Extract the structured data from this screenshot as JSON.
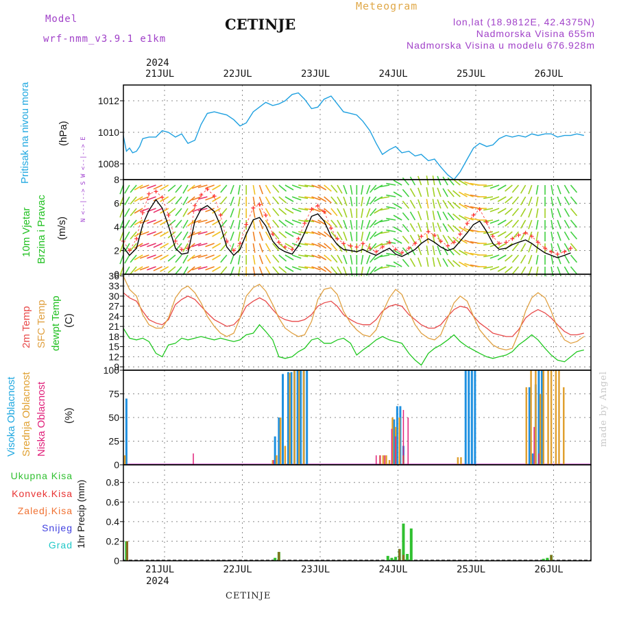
{
  "header": {
    "model_label": "Model",
    "model_name": "wrf-nmm_v3.9.1 e1km",
    "title": "CETINJE",
    "meteogram_label": "Meteogram",
    "lonlat": "lon,lat (18.9812E, 42.4375N)",
    "elevation": "Nadmorska Visina 655m",
    "model_elevation": "Nadmorska Visina u modelu 676.928m"
  },
  "footer": {
    "station": "CETINJE",
    "credit": "made by Angel"
  },
  "time_axis": {
    "year_label": "2024",
    "day_labels": [
      "21JUL",
      "22JUL",
      "23JUL",
      "24JUL",
      "25JUL",
      "26JUL"
    ]
  },
  "colors": {
    "pressure": "#1ea0e0",
    "wind_speed": "#000000",
    "gust": "#ff3030",
    "temp2m": "#e84848",
    "sfc_temp": "#e0a040",
    "dewpoint": "#20c820",
    "high_cloud": "#1e90e0",
    "mid_cloud": "#e0a030",
    "low_cloud": "#e0207a",
    "total_precip": "#30c030",
    "conv_precip": "#e83030",
    "frozen_precip": "#f07030",
    "snow": "#4040e0",
    "graupel": "#20c8c8"
  },
  "chart_data": [
    {
      "type": "line",
      "name": "pressure",
      "ylabel": [
        "Pritisak na nivou mora",
        "(hPa)"
      ],
      "yticks": [
        1008,
        1010,
        1012
      ],
      "ylim": [
        1007,
        1013
      ],
      "grid": true,
      "x_day_offsets": [
        0,
        0.04,
        0.08,
        0.12,
        0.17,
        0.21,
        0.25,
        0.33,
        0.42,
        0.5,
        0.58,
        0.67,
        0.75,
        0.83,
        0.92,
        1.0,
        1.08,
        1.17,
        1.25,
        1.33,
        1.42,
        1.5,
        1.58,
        1.67,
        1.75,
        1.83,
        1.92,
        2.0,
        2.08,
        2.17,
        2.25,
        2.33,
        2.42,
        2.5,
        2.58,
        2.67,
        2.75,
        2.83,
        2.92,
        3.0,
        3.08,
        3.17,
        3.25,
        3.33,
        3.42,
        3.5,
        3.58,
        3.67,
        3.75,
        3.83,
        3.92,
        4.0,
        4.08,
        4.17,
        4.25,
        4.33,
        4.42,
        4.5,
        4.58,
        4.67,
        4.75,
        4.83,
        4.92,
        5.0,
        5.08,
        5.17,
        5.25,
        5.33,
        5.42,
        5.5,
        5.58,
        5.67,
        5.75,
        5.83,
        5.92
      ],
      "values": [
        1009.8,
        1008.8,
        1009.0,
        1008.7,
        1008.8,
        1009.1,
        1009.6,
        1009.7,
        1009.7,
        1010.1,
        1010.0,
        1009.7,
        1009.9,
        1009.3,
        1009.5,
        1010.5,
        1011.2,
        1011.3,
        1011.2,
        1011.1,
        1010.8,
        1010.4,
        1010.6,
        1011.3,
        1011.6,
        1011.9,
        1011.7,
        1011.8,
        1012.0,
        1012.4,
        1012.5,
        1012.1,
        1011.5,
        1011.6,
        1012.1,
        1012.3,
        1011.8,
        1011.3,
        1011.2,
        1011.1,
        1010.7,
        1010.1,
        1009.3,
        1008.6,
        1008.9,
        1009.1,
        1008.7,
        1008.8,
        1008.5,
        1008.6,
        1008.2,
        1008.3,
        1007.8,
        1007.3,
        1007.0,
        1007.5,
        1008.3,
        1009.0,
        1009.3,
        1009.1,
        1009.2,
        1009.6,
        1009.8,
        1009.7,
        1009.8,
        1009.7,
        1009.9,
        1009.8,
        1009.9,
        1009.9,
        1009.7,
        1009.8,
        1009.8,
        1009.9,
        1009.8
      ]
    },
    {
      "type": "line",
      "name": "wind",
      "ylabel": [
        "10m Vjetar",
        "Brzina i Pravac",
        "(m/s)"
      ],
      "compass_label": "N <--|--> S   W <--|--> E",
      "yticks": [
        0,
        2,
        4,
        6,
        8
      ],
      "ylim": [
        0,
        8
      ],
      "grid": true,
      "x_day_offsets": [
        0,
        0.08,
        0.17,
        0.25,
        0.33,
        0.42,
        0.5,
        0.58,
        0.67,
        0.75,
        0.83,
        0.92,
        1.0,
        1.08,
        1.17,
        1.25,
        1.33,
        1.42,
        1.5,
        1.58,
        1.67,
        1.75,
        1.83,
        1.92,
        2.0,
        2.08,
        2.17,
        2.25,
        2.33,
        2.42,
        2.5,
        2.58,
        2.67,
        2.75,
        2.83,
        2.92,
        3.0,
        3.08,
        3.17,
        3.25,
        3.33,
        3.42,
        3.5,
        3.58,
        3.67,
        3.75,
        3.83,
        3.92,
        4.0,
        4.08,
        4.17,
        4.25,
        4.33,
        4.42,
        4.5,
        4.58,
        4.67,
        4.75,
        4.83,
        4.92,
        5.0,
        5.08,
        5.17,
        5.25,
        5.33,
        5.42,
        5.5,
        5.58,
        5.67,
        5.75
      ],
      "speed": [
        2.3,
        1.6,
        2.2,
        4.2,
        5.4,
        6.3,
        5.6,
        4.1,
        2.2,
        1.7,
        1.8,
        4.5,
        5.5,
        5.8,
        5.3,
        4.1,
        2.3,
        1.6,
        2.1,
        3.4,
        4.6,
        4.8,
        4.1,
        2.8,
        2.2,
        1.9,
        1.7,
        2.4,
        3.5,
        4.9,
        5.1,
        4.5,
        3.2,
        2.5,
        2.1,
        2.0,
        1.9,
        2.1,
        1.8,
        1.6,
        1.9,
        2.2,
        1.7,
        1.5,
        1.8,
        2.1,
        2.6,
        3.0,
        2.7,
        2.3,
        2.0,
        2.2,
        2.8,
        3.5,
        4.2,
        4.5,
        3.6,
        2.6,
        2.1,
        2.2,
        2.5,
        2.7,
        2.9,
        2.6,
        2.2,
        1.8,
        1.6,
        1.4,
        1.6,
        1.8
      ],
      "gust": [
        2.8,
        2.0,
        3.0,
        5.2,
        6.8,
        7.0,
        6.5,
        5.0,
        2.8,
        2.1,
        2.2,
        5.8,
        6.7,
        7.2,
        6.6,
        5.0,
        2.8,
        2.0,
        2.6,
        4.2,
        5.6,
        5.9,
        5.0,
        3.4,
        2.7,
        2.3,
        2.1,
        3.0,
        4.3,
        5.5,
        5.8,
        5.3,
        3.9,
        3.0,
        2.6,
        2.4,
        2.3,
        2.6,
        2.2,
        1.9,
        2.3,
        2.7,
        2.1,
        1.8,
        2.2,
        2.6,
        3.2,
        3.6,
        3.3,
        2.8,
        2.4,
        2.7,
        3.4,
        4.3,
        5.0,
        5.5,
        4.4,
        3.2,
        2.6,
        2.7,
        3.0,
        3.3,
        3.5,
        3.2,
        2.7,
        2.2,
        1.9,
        1.7,
        1.9,
        2.2
      ],
      "direction_deg": [
        200,
        210,
        220,
        240,
        250,
        250,
        245,
        240,
        230,
        220,
        210,
        230,
        250,
        255,
        250,
        240,
        220,
        200,
        190,
        180,
        170,
        160,
        150,
        140,
        130,
        120,
        110,
        100,
        100,
        110,
        120,
        130,
        140,
        150,
        160,
        170,
        180,
        190,
        200,
        220,
        240,
        260,
        280,
        300,
        320,
        330,
        340,
        350,
        350,
        340,
        330,
        320,
        310,
        300,
        290,
        280,
        270,
        260,
        250,
        240,
        230,
        220,
        210,
        200,
        190,
        180,
        170,
        160,
        150,
        140
      ]
    },
    {
      "type": "line",
      "name": "temperature",
      "ylabel": [
        "2m Temp",
        "SFC Temp",
        "dewpt Temp",
        "(C)"
      ],
      "yticks": [
        9,
        12,
        15,
        18,
        21,
        24,
        27,
        30,
        33,
        36
      ],
      "ylim": [
        8,
        36.5
      ],
      "grid": true,
      "x_day_offsets": [
        0,
        0.08,
        0.17,
        0.25,
        0.33,
        0.42,
        0.5,
        0.58,
        0.67,
        0.75,
        0.83,
        0.92,
        1.0,
        1.08,
        1.17,
        1.25,
        1.33,
        1.42,
        1.5,
        1.58,
        1.67,
        1.75,
        1.83,
        1.92,
        2.0,
        2.08,
        2.17,
        2.25,
        2.33,
        2.42,
        2.5,
        2.58,
        2.67,
        2.75,
        2.83,
        2.92,
        3.0,
        3.08,
        3.17,
        3.25,
        3.33,
        3.42,
        3.5,
        3.58,
        3.67,
        3.75,
        3.83,
        3.92,
        4.0,
        4.08,
        4.17,
        4.25,
        4.33,
        4.42,
        4.5,
        4.58,
        4.67,
        4.75,
        4.83,
        4.92,
        5.0,
        5.08,
        5.17,
        5.25,
        5.33,
        5.42,
        5.5,
        5.58,
        5.67,
        5.75,
        5.83,
        5.92
      ],
      "series": [
        {
          "name": "2m Temp",
          "values": [
            31.0,
            29.5,
            28.5,
            25.5,
            23.0,
            22.0,
            21.5,
            23.0,
            27.5,
            29.0,
            30.0,
            29.0,
            27.0,
            25.0,
            23.0,
            22.0,
            21.0,
            21.5,
            23.5,
            27.0,
            28.5,
            29.5,
            28.5,
            26.0,
            24.0,
            23.0,
            22.5,
            22.5,
            23.0,
            24.5,
            27.0,
            28.0,
            28.5,
            27.0,
            24.5,
            23.0,
            22.0,
            21.5,
            21.5,
            23.0,
            25.5,
            27.0,
            27.5,
            27.0,
            24.5,
            23.0,
            21.5,
            20.5,
            20.5,
            21.5,
            24.0,
            26.0,
            27.0,
            26.5,
            24.0,
            22.0,
            20.5,
            19.0,
            18.5,
            18.0,
            18.0,
            20.0,
            23.5,
            25.0,
            26.0,
            25.0,
            23.5,
            21.5,
            19.5,
            18.5,
            18.5,
            19.0
          ]
        },
        {
          "name": "SFC Temp",
          "values": [
            36.0,
            32.0,
            30.0,
            24.5,
            21.5,
            20.5,
            20.5,
            23.5,
            29.5,
            32.0,
            33.0,
            31.0,
            28.0,
            24.0,
            21.0,
            19.0,
            18.0,
            19.0,
            23.5,
            30.0,
            32.5,
            33.5,
            31.5,
            27.5,
            23.5,
            20.5,
            19.0,
            18.0,
            18.5,
            22.5,
            29.0,
            32.0,
            32.5,
            30.5,
            25.5,
            22.0,
            20.0,
            18.5,
            18.0,
            20.0,
            25.0,
            29.5,
            32.0,
            30.5,
            25.5,
            21.5,
            19.0,
            17.5,
            17.0,
            18.5,
            23.5,
            28.0,
            30.0,
            28.5,
            24.0,
            20.0,
            17.5,
            15.5,
            14.5,
            14.0,
            14.5,
            19.0,
            25.5,
            29.5,
            31.0,
            29.5,
            25.5,
            20.5,
            17.0,
            16.0,
            16.5,
            18.0
          ]
        },
        {
          "name": "dewpt Temp",
          "values": [
            20.5,
            17.5,
            17.0,
            17.5,
            16.5,
            13.0,
            12.0,
            15.5,
            16.0,
            17.5,
            17.0,
            17.5,
            18.0,
            17.5,
            17.0,
            17.5,
            17.0,
            16.5,
            17.0,
            18.5,
            19.0,
            21.5,
            19.5,
            17.0,
            12.0,
            11.5,
            12.0,
            13.5,
            14.5,
            17.0,
            17.5,
            16.0,
            16.0,
            17.0,
            17.5,
            16.0,
            12.5,
            14.0,
            15.5,
            17.0,
            18.0,
            17.0,
            16.5,
            16.0,
            13.0,
            11.0,
            9.5,
            13.0,
            14.5,
            15.5,
            17.0,
            18.5,
            16.5,
            15.0,
            14.0,
            13.0,
            12.0,
            11.5,
            12.0,
            12.5,
            13.5,
            15.5,
            17.0,
            18.5,
            17.0,
            14.5,
            12.5,
            11.0,
            10.5,
            12.0,
            13.5,
            14.0
          ]
        }
      ]
    },
    {
      "type": "bar",
      "name": "clouds",
      "ylabel": [
        "Visoka Oblacnost",
        "Srednja Oblacnost",
        "Niska Oblacnost",
        "(%)"
      ],
      "yticks": [
        0,
        25,
        50,
        75,
        100
      ],
      "ylim": [
        0,
        100
      ],
      "grid": true,
      "series": [
        {
          "name": "Visoka Oblacnost",
          "x_day_offsets": [
            0.04,
            1.95,
            2.0,
            2.05,
            2.12,
            2.16,
            2.2,
            2.24,
            2.28,
            2.32,
            2.36,
            3.48,
            3.52,
            3.56,
            3.6,
            4.4,
            4.44,
            4.48,
            4.52,
            5.22,
            5.26,
            5.3,
            5.34,
            5.38
          ],
          "values": [
            70,
            30,
            50,
            96,
            98,
            98,
            99,
            100,
            100,
            100,
            100,
            48,
            62,
            62,
            20,
            100,
            100,
            100,
            100,
            82,
            12,
            85,
            100,
            100
          ]
        },
        {
          "name": "Srednja Oblacnost",
          "x_day_offsets": [
            0.02,
            1.92,
            1.97,
            2.02,
            2.08,
            2.14,
            2.2,
            2.26,
            2.32,
            3.3,
            3.34,
            3.38,
            3.42,
            3.46,
            3.5,
            3.55,
            3.6,
            4.3,
            4.34,
            5.18,
            5.24,
            5.3,
            5.36,
            5.4,
            5.46,
            5.5,
            5.56,
            5.6,
            5.66
          ],
          "values": [
            10,
            5,
            10,
            50,
            20,
            97,
            100,
            100,
            100,
            10,
            10,
            10,
            5,
            50,
            40,
            50,
            10,
            8,
            8,
            82,
            100,
            100,
            75,
            100,
            100,
            100,
            100,
            100,
            82
          ]
        },
        {
          "name": "Niska Oblacnost",
          "x_day_offsets": [
            0.9,
            1.93,
            3.25,
            3.3,
            3.36,
            3.45,
            3.5,
            3.6,
            3.66,
            5.28,
            5.34
          ],
          "values": [
            12,
            5,
            10,
            10,
            10,
            38,
            30,
            58,
            50,
            40,
            12
          ]
        }
      ]
    },
    {
      "type": "bar",
      "name": "precipitation",
      "ylabel": [
        "1hr Precip (mm)"
      ],
      "legend": [
        "Ukupna Kisa",
        "Konvek.Kisa",
        "Zaledj.Kisa",
        "Snijeg",
        "Grad"
      ],
      "legend_placement": "left",
      "yticks": [
        0,
        0.2,
        0.4,
        0.6,
        0.8
      ],
      "ylim": [
        0,
        0.98
      ],
      "grid": true,
      "series": [
        {
          "name": "Ukupna Kisa",
          "x_day_offsets": [
            0.04,
            1.95,
            2.0,
            3.4,
            3.45,
            3.5,
            3.55,
            3.6,
            3.65,
            3.7,
            5.4,
            5.45,
            5.5
          ],
          "values": [
            0.2,
            0.03,
            0.09,
            0.05,
            0.03,
            0.04,
            0.12,
            0.38,
            0.07,
            0.33,
            0.02,
            0.03,
            0.06
          ]
        },
        {
          "name": "Konvek.Kisa",
          "x_day_offsets": [
            0.05,
            2.0,
            3.55,
            3.6,
            5.5
          ],
          "values": [
            0.2,
            0.09,
            0.12,
            0.06,
            0.06
          ]
        }
      ]
    }
  ]
}
